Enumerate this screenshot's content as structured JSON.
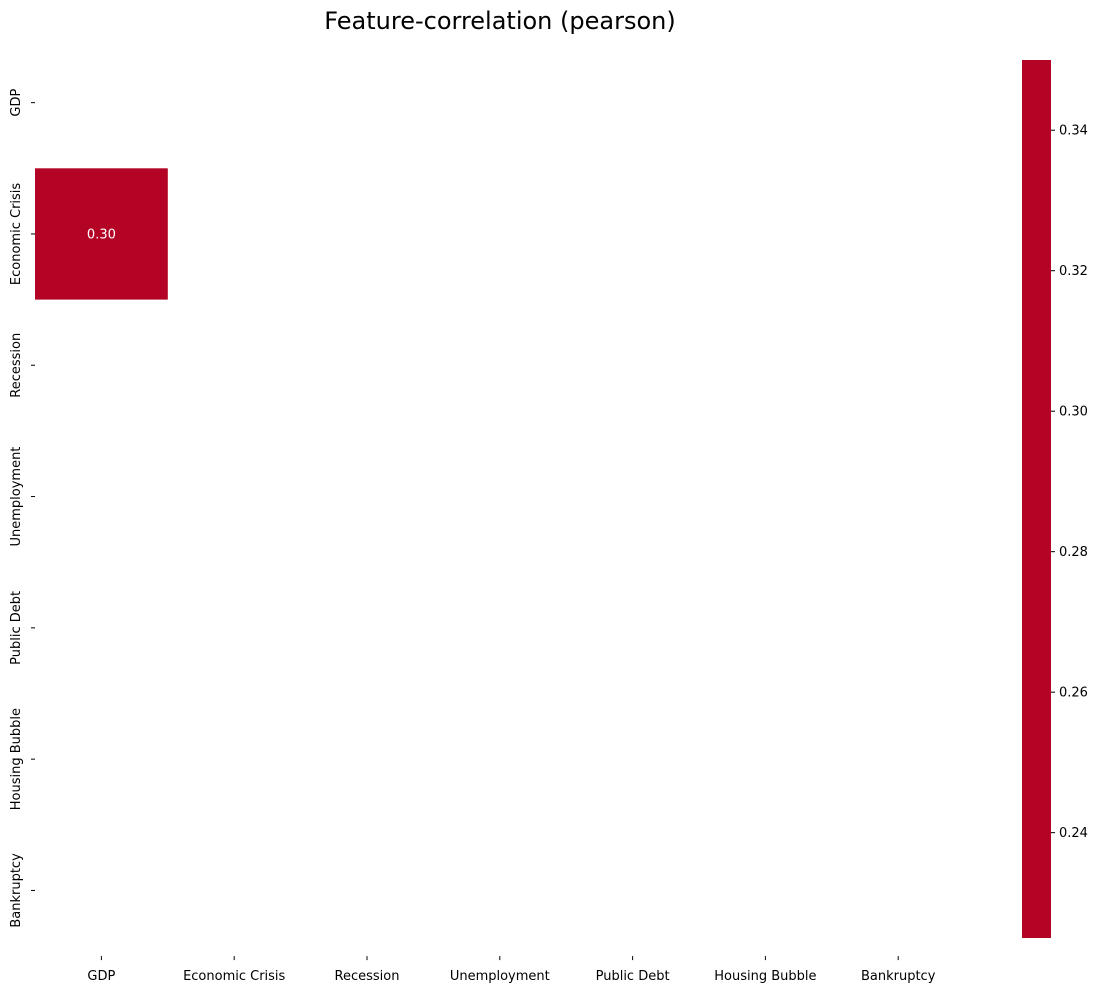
{
  "chart_data": {
    "type": "heatmap",
    "title": "Feature-correlation (pearson)",
    "xlabel": "",
    "ylabel": "",
    "rows": [
      "GDP",
      "Economic Crisis",
      "Recession",
      "Unemployment",
      "Public Debt",
      "Housing Bubble",
      "Bankruptcy"
    ],
    "columns": [
      "GDP",
      "Economic Crisis",
      "Recession",
      "Unemployment",
      "Public Debt",
      "Housing Bubble",
      "Bankruptcy"
    ],
    "cells": [
      {
        "row": "Economic Crisis",
        "column": "GDP",
        "value": 0.3,
        "label": "0.30"
      }
    ],
    "colorbar": {
      "ticks": [
        "0.24",
        "0.26",
        "0.28",
        "0.30",
        "0.32",
        "0.34"
      ],
      "tick_values": [
        0.24,
        0.26,
        0.28,
        0.3,
        0.32,
        0.34
      ],
      "range": [
        0.225,
        0.35
      ],
      "color": "#b40426"
    },
    "grid": false
  }
}
